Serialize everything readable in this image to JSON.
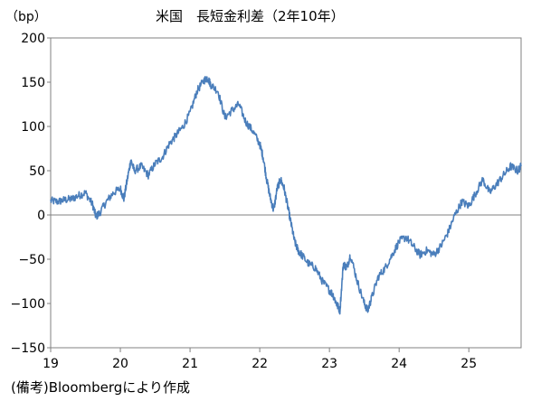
{
  "chart_data": {
    "type": "line",
    "title": "米国　長短金利差（2年10年）",
    "ylabel": "（bp）",
    "xlabel": "",
    "ylim": [
      -150,
      200
    ],
    "yticks": [
      200,
      150,
      100,
      50,
      0,
      -50,
      -100,
      -150
    ],
    "ytick_labels": [
      "200",
      "150",
      "100",
      "50",
      "0",
      "−50",
      "−100",
      "−150"
    ],
    "xlim": [
      19,
      25.75
    ],
    "xticks": [
      19,
      20,
      21,
      22,
      23,
      24,
      25
    ],
    "xtick_labels": [
      "19",
      "20",
      "21",
      "22",
      "23",
      "24",
      "25"
    ],
    "grid": false,
    "zero_line": true,
    "series": [
      {
        "color": "#4a7ebb",
        "x": [
          19.0,
          19.1,
          19.2,
          19.3,
          19.4,
          19.5,
          19.6,
          19.65,
          19.7,
          19.8,
          19.9,
          20.0,
          20.05,
          20.1,
          20.15,
          20.2,
          20.3,
          20.4,
          20.5,
          20.6,
          20.7,
          20.8,
          20.9,
          21.0,
          21.1,
          21.2,
          21.25,
          21.3,
          21.4,
          21.5,
          21.6,
          21.7,
          21.8,
          21.9,
          22.0,
          22.05,
          22.1,
          22.15,
          22.2,
          22.25,
          22.3,
          22.35,
          22.4,
          22.45,
          22.5,
          22.55,
          22.6,
          22.7,
          22.8,
          22.9,
          23.0,
          23.05,
          23.1,
          23.15,
          23.2,
          23.25,
          23.3,
          23.4,
          23.5,
          23.55,
          23.6,
          23.7,
          23.8,
          23.9,
          24.0,
          24.1,
          24.2,
          24.3,
          24.4,
          24.5,
          24.6,
          24.7,
          24.8,
          24.9,
          25.0,
          25.1,
          25.2,
          25.3,
          25.4,
          25.5,
          25.6,
          25.7,
          25.75
        ],
        "values": [
          16,
          15,
          17,
          18,
          22,
          25,
          12,
          -2,
          2,
          15,
          25,
          30,
          18,
          40,
          62,
          50,
          55,
          45,
          58,
          65,
          80,
          90,
          100,
          115,
          140,
          152,
          155,
          147,
          140,
          110,
          118,
          125,
          105,
          95,
          80,
          65,
          40,
          20,
          5,
          30,
          40,
          30,
          10,
          -10,
          -30,
          -40,
          -45,
          -55,
          -60,
          -75,
          -85,
          -90,
          -100,
          -108,
          -55,
          -60,
          -45,
          -75,
          -100,
          -108,
          -95,
          -70,
          -60,
          -45,
          -30,
          -25,
          -35,
          -45,
          -40,
          -45,
          -35,
          -20,
          0,
          15,
          10,
          25,
          40,
          25,
          35,
          45,
          55,
          50,
          55
        ]
      }
    ]
  },
  "footnote": "(備考)Bloombergにより作成"
}
